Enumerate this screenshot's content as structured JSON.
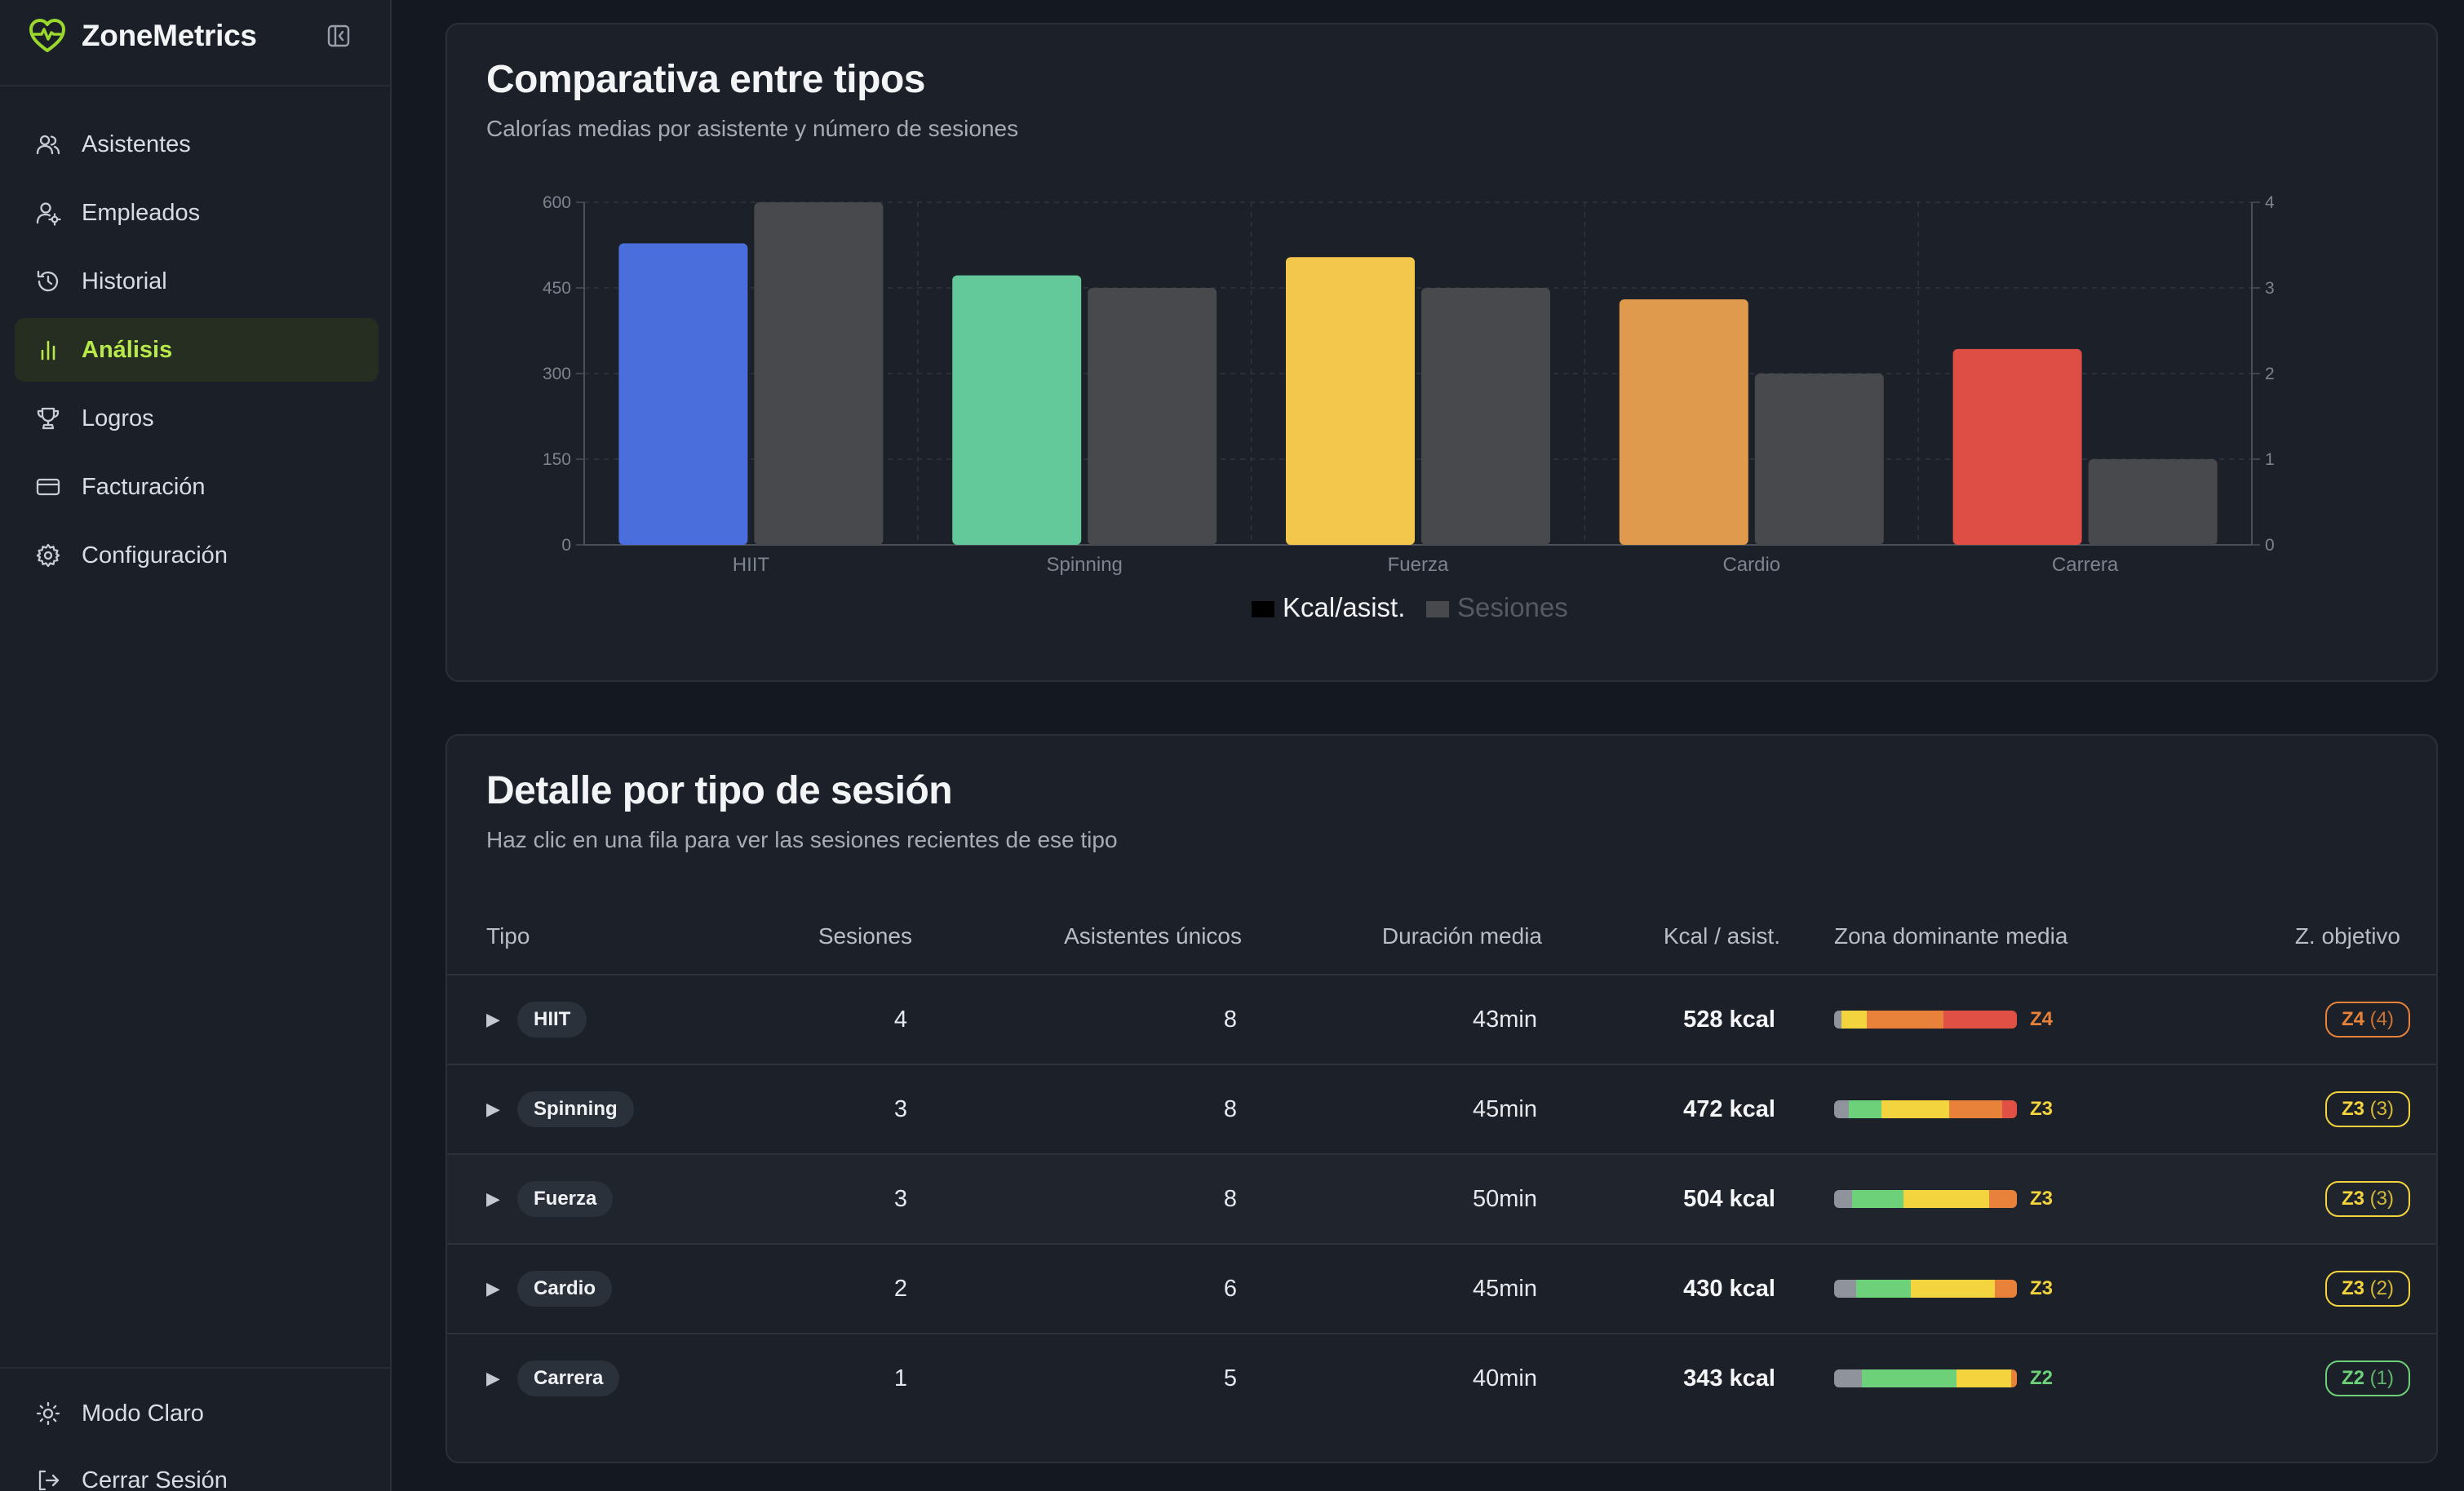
{
  "app": {
    "name": "ZoneMetrics"
  },
  "sidebar": {
    "items": [
      {
        "label": "Asistentes",
        "icon": "users-icon",
        "active": false
      },
      {
        "label": "Empleados",
        "icon": "user-cog-icon",
        "active": false
      },
      {
        "label": "Historial",
        "icon": "history-icon",
        "active": false
      },
      {
        "label": "Análisis",
        "icon": "bar-chart-icon",
        "active": true
      },
      {
        "label": "Logros",
        "icon": "trophy-icon",
        "active": false
      },
      {
        "label": "Facturación",
        "icon": "credit-card-icon",
        "active": false
      },
      {
        "label": "Configuración",
        "icon": "gear-icon",
        "active": false
      }
    ],
    "bottom": [
      {
        "label": "Modo Claro",
        "icon": "sun-icon"
      },
      {
        "label": "Cerrar Sesión",
        "icon": "logout-icon"
      }
    ]
  },
  "chart_card": {
    "title": "Comparativa entre tipos",
    "subtitle": "Calorías medias por asistente y número de sesiones"
  },
  "chart_data": {
    "type": "bar",
    "categories": [
      "HIIT",
      "Spinning",
      "Fuerza",
      "Cardio",
      "Carrera"
    ],
    "series": [
      {
        "name": "Kcal/asist.",
        "values": [
          528,
          472,
          504,
          430,
          343
        ],
        "axis": "left",
        "colors": [
          "#4a6fdc",
          "#63c99a",
          "#f3c74b",
          "#df9a4e",
          "#de4e45"
        ]
      },
      {
        "name": "Sesiones",
        "values": [
          4,
          3,
          3,
          2,
          1
        ],
        "axis": "right",
        "color": "#48494d"
      }
    ],
    "y_left": {
      "ticks": [
        "0",
        "150",
        "300",
        "450",
        "600"
      ],
      "ylim": [
        0,
        600
      ]
    },
    "y_right": {
      "ticks": [
        "0",
        "1",
        "2",
        "3",
        "4"
      ],
      "ylim": [
        0,
        4
      ]
    },
    "grid": true,
    "legend": "bottom-center",
    "legend_colors": {
      "Kcal/asist.": "#000000",
      "Sesiones": "#48494d"
    }
  },
  "table_card": {
    "title": "Detalle por tipo de sesión",
    "subtitle": "Haz clic en una fila para ver las sesiones recientes de ese tipo",
    "headers": {
      "tipo": "Tipo",
      "sesiones": "Sesiones",
      "asistentes": "Asistentes únicos",
      "duracion": "Duración media",
      "kcal": "Kcal / asist.",
      "zona": "Zona dominante media",
      "objetivo": "Z. objetivo"
    },
    "rows": [
      {
        "tipo": "HIIT",
        "sesiones": "4",
        "asistentes": "8",
        "duracion": "43min",
        "kcal": "528 kcal",
        "zona": "Z4",
        "zona_color": "#e8823a",
        "objetivo": "Z4",
        "objetivo_count": "(4)",
        "objetivo_color": "#e8823a",
        "zone_mix": [
          {
            "c": "#8e939c",
            "w": 4
          },
          {
            "c": "#f3d33e",
            "w": 14
          },
          {
            "c": "#e8823a",
            "w": 42
          },
          {
            "c": "#e05045",
            "w": 40
          }
        ]
      },
      {
        "tipo": "Spinning",
        "sesiones": "3",
        "asistentes": "8",
        "duracion": "45min",
        "kcal": "472 kcal",
        "zona": "Z3",
        "zona_color": "#f3d33e",
        "objetivo": "Z3",
        "objetivo_count": "(3)",
        "objetivo_color": "#f3d33e",
        "zone_mix": [
          {
            "c": "#8e939c",
            "w": 8
          },
          {
            "c": "#6dd17a",
            "w": 18
          },
          {
            "c": "#f3d33e",
            "w": 37
          },
          {
            "c": "#e8823a",
            "w": 29
          },
          {
            "c": "#e05045",
            "w": 8
          }
        ]
      },
      {
        "tipo": "Fuerza",
        "sesiones": "3",
        "asistentes": "8",
        "duracion": "50min",
        "kcal": "504 kcal",
        "zona": "Z3",
        "zona_color": "#f3d33e",
        "objetivo": "Z3",
        "objetivo_count": "(3)",
        "objetivo_color": "#f3d33e",
        "zone_mix": [
          {
            "c": "#8e939c",
            "w": 10
          },
          {
            "c": "#6dd17a",
            "w": 28
          },
          {
            "c": "#f3d33e",
            "w": 47
          },
          {
            "c": "#e8823a",
            "w": 15
          }
        ]
      },
      {
        "tipo": "Cardio",
        "sesiones": "2",
        "asistentes": "6",
        "duracion": "45min",
        "kcal": "430 kcal",
        "zona": "Z3",
        "zona_color": "#f3d33e",
        "objetivo": "Z3",
        "objetivo_count": "(2)",
        "objetivo_color": "#f3d33e",
        "zone_mix": [
          {
            "c": "#8e939c",
            "w": 12
          },
          {
            "c": "#6dd17a",
            "w": 30
          },
          {
            "c": "#f3d33e",
            "w": 46
          },
          {
            "c": "#e8823a",
            "w": 12
          }
        ]
      },
      {
        "tipo": "Carrera",
        "sesiones": "1",
        "asistentes": "5",
        "duracion": "40min",
        "kcal": "343 kcal",
        "zona": "Z2",
        "zona_color": "#6dd17a",
        "objetivo": "Z2",
        "objetivo_count": "(1)",
        "objetivo_color": "#6dd17a",
        "zone_mix": [
          {
            "c": "#8e939c",
            "w": 15
          },
          {
            "c": "#6dd17a",
            "w": 52
          },
          {
            "c": "#f3d33e",
            "w": 30
          },
          {
            "c": "#e8823a",
            "w": 3
          }
        ]
      }
    ]
  }
}
